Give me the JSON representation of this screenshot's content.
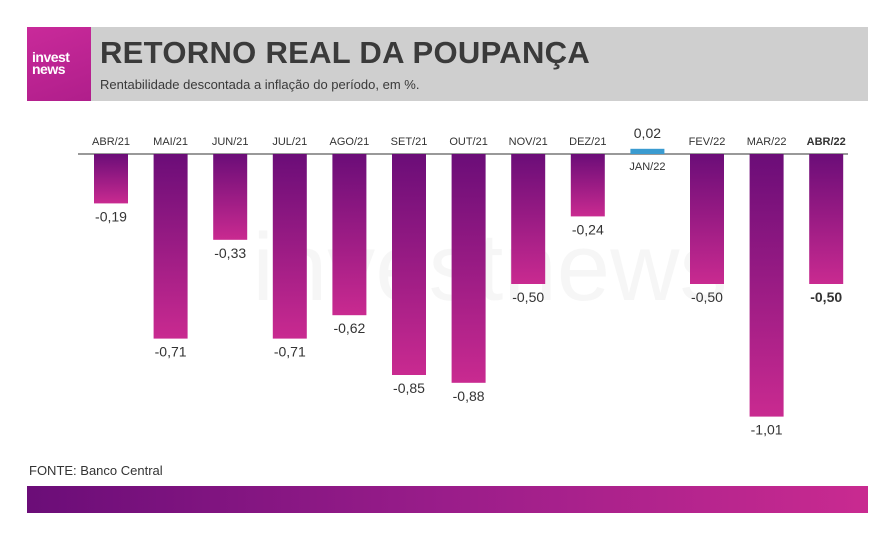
{
  "header": {
    "logo_text": "invest news",
    "title": "RETORNO REAL DA POUPANÇA",
    "subtitle": "Rentabilidade descontada a inflação do período, em %."
  },
  "watermark": "investnews",
  "source": "FONTE: Banco Central",
  "colors": {
    "bar_top": "#6b0d78",
    "bar_bottom": "#c92a90",
    "positive_bar": "#3a9bd0",
    "header_bg": "#cfcfcf",
    "logo_bg": "#c92a9a"
  },
  "chart_data": {
    "type": "bar",
    "categories": [
      "ABR/21",
      "MAI/21",
      "JUN/21",
      "JUL/21",
      "AGO/21",
      "SET/21",
      "OUT/21",
      "NOV/21",
      "DEZ/21",
      "JAN/22",
      "FEV/22",
      "MAR/22",
      "ABR/22"
    ],
    "values": [
      -0.19,
      -0.71,
      -0.33,
      -0.71,
      -0.62,
      -0.85,
      -0.88,
      -0.5,
      -0.24,
      0.02,
      -0.5,
      -1.01,
      -0.5
    ],
    "value_labels": [
      "-0,19",
      "-0,71",
      "-0,33",
      "-0,71",
      "-0,62",
      "-0,85",
      "-0,88",
      "-0,50",
      "-0,24",
      "0,02",
      "-0,50",
      "-1,01",
      "-0,50"
    ],
    "highlight_index": 12,
    "title": "RETORNO REAL DA POUPANÇA",
    "xlabel": "",
    "ylabel": "",
    "grid": false,
    "legend": "none"
  }
}
